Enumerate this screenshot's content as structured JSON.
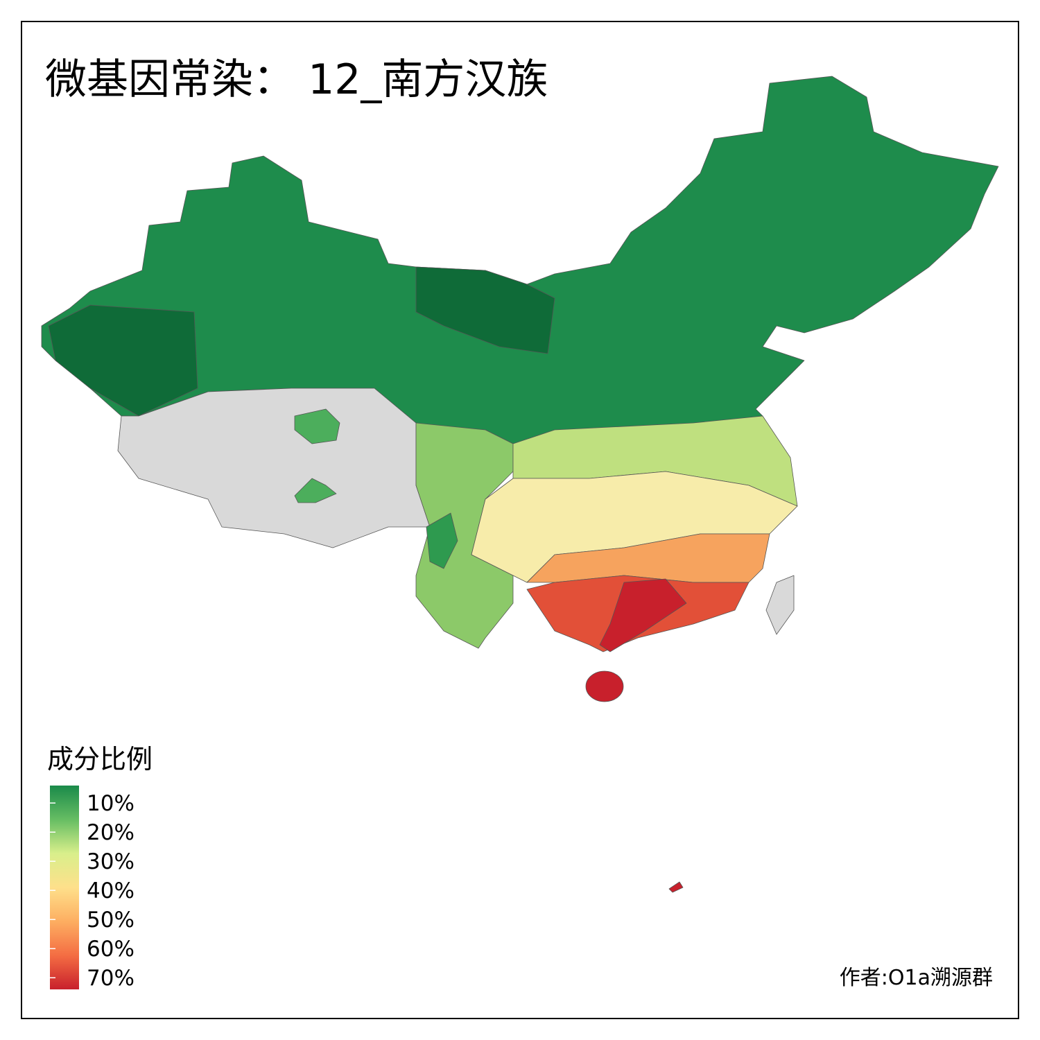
{
  "title": "微基因常染： 12_南方汉族",
  "legend": {
    "title": "成分比例",
    "range": [
      4,
      74
    ],
    "colors": [
      "#1a8a4a",
      "#66bd63",
      "#d9ef8b",
      "#fee08b",
      "#fdae61",
      "#f46d43",
      "#c8202c"
    ],
    "ticks": [
      {
        "value": 10,
        "label": "10%"
      },
      {
        "value": 20,
        "label": "20%"
      },
      {
        "value": 30,
        "label": "30%"
      },
      {
        "value": 40,
        "label": "40%"
      },
      {
        "value": 50,
        "label": "50%"
      },
      {
        "value": 60,
        "label": "60%"
      },
      {
        "value": 70,
        "label": "70%"
      }
    ]
  },
  "credit": "作者:O1a溯源群"
}
